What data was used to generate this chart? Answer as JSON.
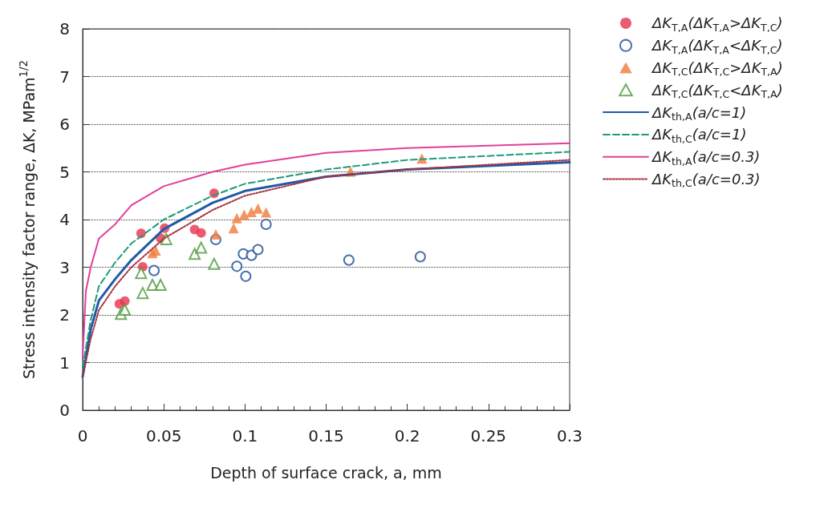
{
  "chart_data": {
    "type": "scatter",
    "xlabel": "Depth of surface crack, a, mm",
    "ylabel": "Stress intensity factor range, ΔK, MPam$^{1/2}$",
    "xlim": [
      0,
      0.3
    ],
    "xticks": [
      0,
      0.05,
      0.1,
      0.15,
      0.2,
      0.25,
      0.3
    ],
    "ylim": [
      0,
      8
    ],
    "yticks": [
      0,
      1,
      2,
      3,
      4,
      5,
      6,
      7,
      8
    ],
    "grid": "y",
    "legend": "top right",
    "series": [
      {
        "type": "scatter",
        "marker": "circle",
        "name": "ΔK$_{T,A}$(ΔK$_{T,A}$>ΔK$_{T,C}$)",
        "color": "#e8324f",
        "x": [
          0.0226,
          0.026,
          0.036,
          0.037,
          0.048,
          0.0505,
          0.069,
          0.073,
          0.081
        ],
        "values": [
          2.23,
          2.29,
          3.71,
          3.01,
          3.61,
          3.82,
          3.79,
          3.72,
          4.55
        ]
      },
      {
        "type": "scatter",
        "marker": "circle",
        "name": "ΔK$_{T,A}$(ΔK$_{T,A}$<ΔK$_{T,C}$)",
        "color": "#1f4e99",
        "x": [
          0.044,
          0.082,
          0.095,
          0.099,
          0.1005,
          0.104,
          0.108,
          0.113,
          0.164,
          0.208
        ],
        "values": [
          2.93,
          3.58,
          3.02,
          3.28,
          2.81,
          3.25,
          3.37,
          3.9,
          3.15,
          3.22
        ]
      },
      {
        "type": "scatter",
        "marker": "triangle",
        "name": "ΔK$_{T,C}$(ΔK$_{T,C}$>ΔK$_{T,A}$)",
        "color": "#f07a3c",
        "x": [
          0.043,
          0.045,
          0.082,
          0.093,
          0.095,
          0.0995,
          0.104,
          0.108,
          0.113,
          0.165,
          0.209
        ],
        "values": [
          3.3,
          3.35,
          3.69,
          3.82,
          4.03,
          4.1,
          4.16,
          4.23,
          4.15,
          5.01,
          5.28
        ]
      },
      {
        "type": "scatter",
        "marker": "triangle",
        "name": "ΔK$_{T,C}$(ΔK$_{T,C}$<ΔK$_{T,A}$)",
        "color": "#4a9a3a",
        "x": [
          0.0236,
          0.026,
          0.036,
          0.037,
          0.043,
          0.048,
          0.0515,
          0.069,
          0.073,
          0.081
        ],
        "values": [
          2.02,
          2.11,
          2.88,
          2.46,
          2.63,
          2.63,
          3.59,
          3.28,
          3.41,
          3.07
        ]
      },
      {
        "type": "line",
        "line_style": "solid",
        "name": "ΔK$_{th,A}$(a/c=1)",
        "color": "#1f5aa8",
        "x": [
          0,
          0.005,
          0.01,
          0.02,
          0.03,
          0.05,
          0.08,
          0.1,
          0.15,
          0.2,
          0.3
        ],
        "values": [
          0.7,
          1.7,
          2.3,
          2.75,
          3.15,
          3.8,
          4.35,
          4.6,
          4.9,
          5.05,
          5.2
        ]
      },
      {
        "type": "line",
        "line_style": "dashed",
        "name": "ΔK$_{th,C}$(a/c=1)",
        "color": "#1e9a7a",
        "x": [
          0,
          0.005,
          0.01,
          0.02,
          0.03,
          0.05,
          0.08,
          0.1,
          0.15,
          0.2,
          0.3
        ],
        "values": [
          0.9,
          1.9,
          2.6,
          3.1,
          3.5,
          4.0,
          4.5,
          4.75,
          5.05,
          5.25,
          5.42
        ]
      },
      {
        "type": "line",
        "line_style": "solid",
        "name": "ΔK$_{th,A}$(a/c=0.3)",
        "color": "#e0409a",
        "x": [
          0,
          0.002,
          0.005,
          0.01,
          0.02,
          0.03,
          0.05,
          0.08,
          0.1,
          0.15,
          0.2,
          0.3
        ],
        "values": [
          1.1,
          2.5,
          3.0,
          3.6,
          3.9,
          4.3,
          4.7,
          5.0,
          5.15,
          5.4,
          5.5,
          5.6
        ]
      },
      {
        "type": "line",
        "line_style": "dotted",
        "name": "ΔK$_{th,C}$(a/c=0.3)",
        "color": "#a8323c",
        "x": [
          0,
          0.005,
          0.01,
          0.02,
          0.03,
          0.05,
          0.08,
          0.1,
          0.15,
          0.2,
          0.3
        ],
        "values": [
          0.7,
          1.5,
          2.1,
          2.6,
          3.0,
          3.6,
          4.2,
          4.5,
          4.9,
          5.05,
          5.25
        ]
      }
    ]
  }
}
